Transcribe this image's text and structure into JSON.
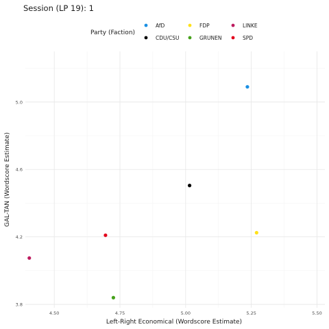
{
  "chart_data": {
    "type": "scatter",
    "title": "Session (LP 19): 1",
    "xlabel": "Left-Right Economical (Wordscore Estimate)",
    "ylabel": "GAL-TAN (Wordscore Estimate)",
    "xlim": [
      4.39,
      5.53
    ],
    "ylim": [
      3.78,
      5.3
    ],
    "xticks": [
      4.5,
      4.75,
      5.0,
      5.25,
      5.5
    ],
    "xtick_labels": [
      "4.50",
      "4.75",
      "5.00",
      "5.25",
      "5.50"
    ],
    "yticks": [
      3.8,
      4.2,
      4.6,
      5.0
    ],
    "ytick_labels": [
      "3.8",
      "4.2",
      "4.6",
      "5.0"
    ],
    "grid": true,
    "legend": {
      "title": "Party (Faction)",
      "placement": "top",
      "entries": [
        "AfD",
        "CDU/CSU",
        "FDP",
        "GRUNEN",
        "LINKE",
        "SPD"
      ]
    },
    "series": [
      {
        "name": "AfD",
        "color": "#1a8fe3",
        "x": [
          5.235
        ],
        "y": [
          5.09
        ]
      },
      {
        "name": "CDU/CSU",
        "color": "#000000",
        "x": [
          5.015
        ],
        "y": [
          4.505
        ]
      },
      {
        "name": "FDP",
        "color": "#ffe119",
        "x": [
          5.27
        ],
        "y": [
          4.225
        ]
      },
      {
        "name": "GRUNEN",
        "color": "#46a11b",
        "x": [
          4.725
        ],
        "y": [
          3.84
        ]
      },
      {
        "name": "LINKE",
        "color": "#bd1c5f",
        "x": [
          4.405
        ],
        "y": [
          4.075
        ]
      },
      {
        "name": "SPD",
        "color": "#e3001b",
        "x": [
          4.695
        ],
        "y": [
          4.21
        ]
      }
    ]
  }
}
